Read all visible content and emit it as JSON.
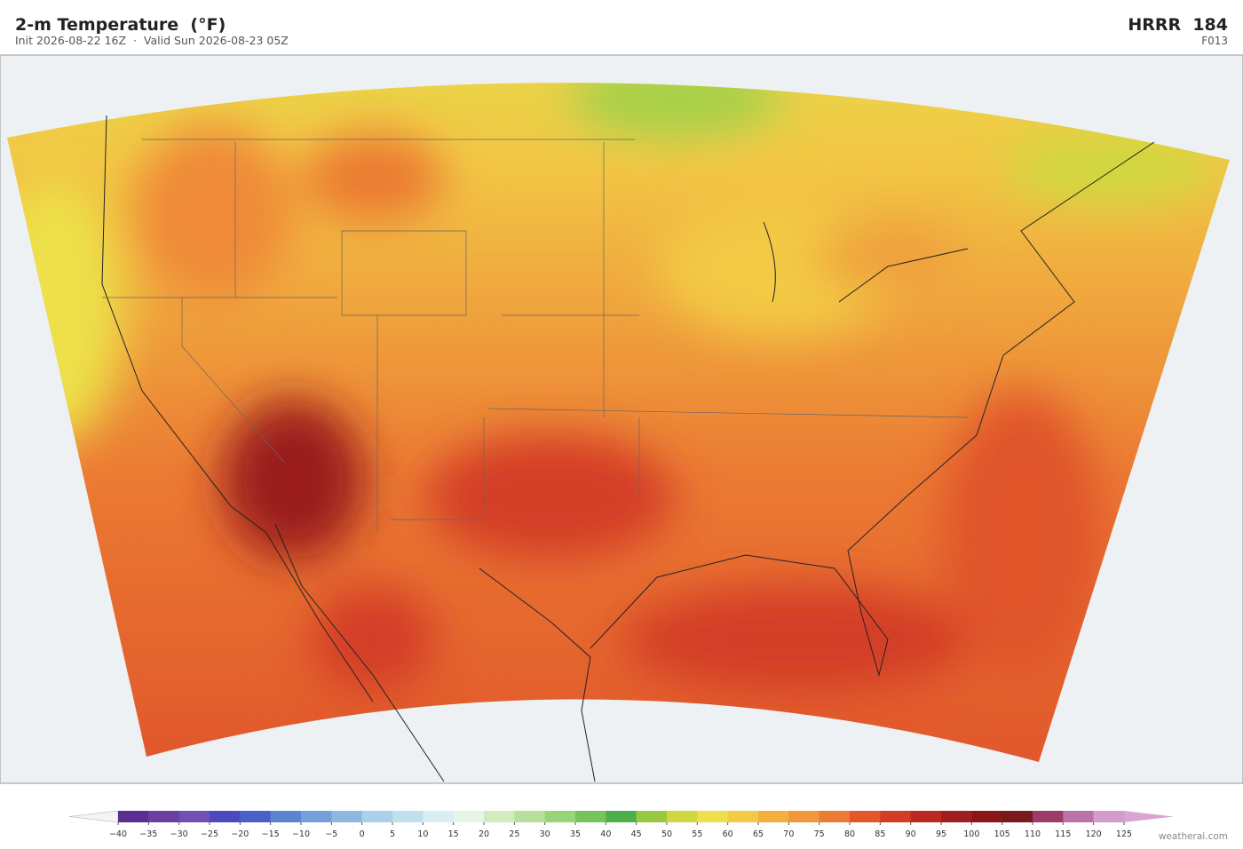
{
  "header": {
    "title": "2-m Temperature  (°F)",
    "subtitle": "Init 2026-08-22 16Z  ·  Valid Sun 2026-08-23 05Z",
    "model": "HRRR  184",
    "forecast_hour": "F013"
  },
  "colorbar": {
    "ticks": [
      {
        "value": -40,
        "label": "−40"
      },
      {
        "value": -35,
        "label": "−35"
      },
      {
        "value": -30,
        "label": "−30"
      },
      {
        "value": -25,
        "label": "−25"
      },
      {
        "value": -20,
        "label": "−20"
      },
      {
        "value": -15,
        "label": "−15"
      },
      {
        "value": -10,
        "label": "−10"
      },
      {
        "value": -5,
        "label": "−5"
      },
      0,
      5,
      10,
      15,
      20,
      25,
      30,
      35,
      40,
      45,
      50,
      55,
      60,
      65,
      70,
      75,
      80,
      85,
      90,
      95,
      100,
      105,
      110,
      115,
      120,
      125
    ],
    "colors": [
      "#5a2d91",
      "#6a3fa0",
      "#7050b0",
      "#4b4bbf",
      "#4a60c8",
      "#5b85d0",
      "#74a0da",
      "#8fb8e0",
      "#a8d0e8",
      "#c0e0ee",
      "#d8eef2",
      "#e6f5e6",
      "#d4ebc0",
      "#b8e09a",
      "#98d478",
      "#78c45c",
      "#4caf4c",
      "#98c840",
      "#cfd840",
      "#ede04a",
      "#f3c945",
      "#f2b03e",
      "#ef973a",
      "#eb7a33",
      "#e2582b",
      "#d33d25",
      "#bb2a22",
      "#a01e1e",
      "#8a1717",
      "#7a1a1e",
      "#9c3c6a",
      "#bb72a8",
      "#d49cca"
    ],
    "extend_colors": [
      "#f4f4f4",
      "#d9a5d5"
    ]
  },
  "footer": {
    "credit": "weatherai.com"
  }
}
